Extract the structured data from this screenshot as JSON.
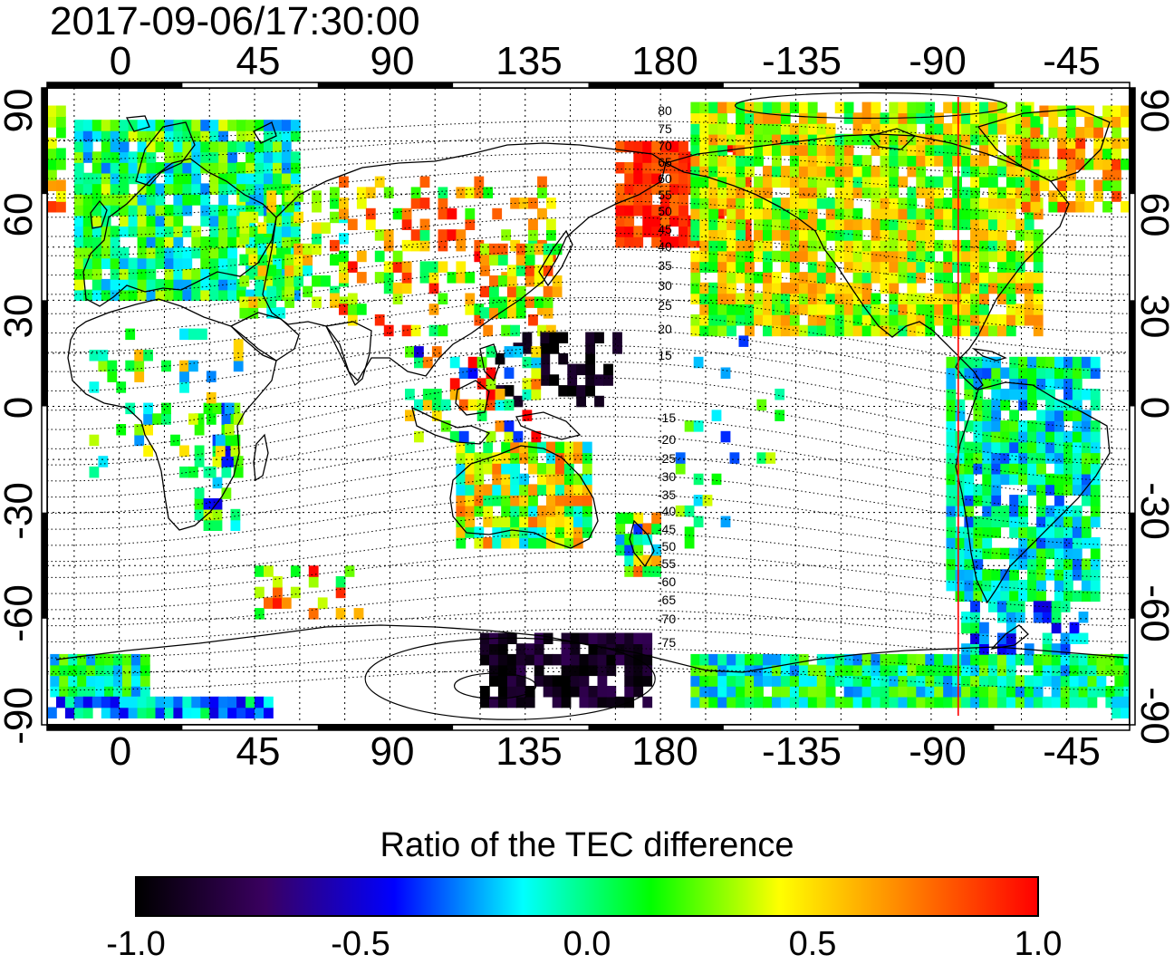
{
  "timestamp": "2017-09-06/17:30:00",
  "map": {
    "top_lon_ticks": [
      "0",
      "45",
      "90",
      "135",
      "180",
      "-135",
      "-90",
      "-45"
    ],
    "bottom_lon_ticks": [
      "0",
      "45",
      "90",
      "135",
      "180",
      "-135",
      "-90",
      "-45"
    ],
    "left_lat_ticks": [
      "90",
      "60",
      "30",
      "0",
      "-30",
      "-60",
      "-90"
    ],
    "right_lat_ticks": [
      "90",
      "60",
      "30",
      "0",
      "-30",
      "-60",
      "-90"
    ],
    "contour_labels_north": [
      "80",
      "75",
      "70",
      "65",
      "60",
      "55",
      "50",
      "45",
      "40",
      "35",
      "30",
      "25",
      "20",
      "15"
    ],
    "contour_labels_south": [
      "-15",
      "-20",
      "-25",
      "-30",
      "-35",
      "-40",
      "-45",
      "-50",
      "-55",
      "-60",
      "-65",
      "-70",
      "-75"
    ],
    "marker_line_color": "#ff0000",
    "marker_line_lon": -81
  },
  "colorbar": {
    "title": "Ratio of the TEC difference",
    "ticks": [
      "-1.0",
      "-0.5",
      "0.0",
      "0.5",
      "1.0"
    ],
    "colors": [
      "#000000",
      "#3a0060",
      "#0000ff",
      "#00ffff",
      "#00ff00",
      "#ffff00",
      "#ff8000",
      "#ff0000"
    ]
  }
}
